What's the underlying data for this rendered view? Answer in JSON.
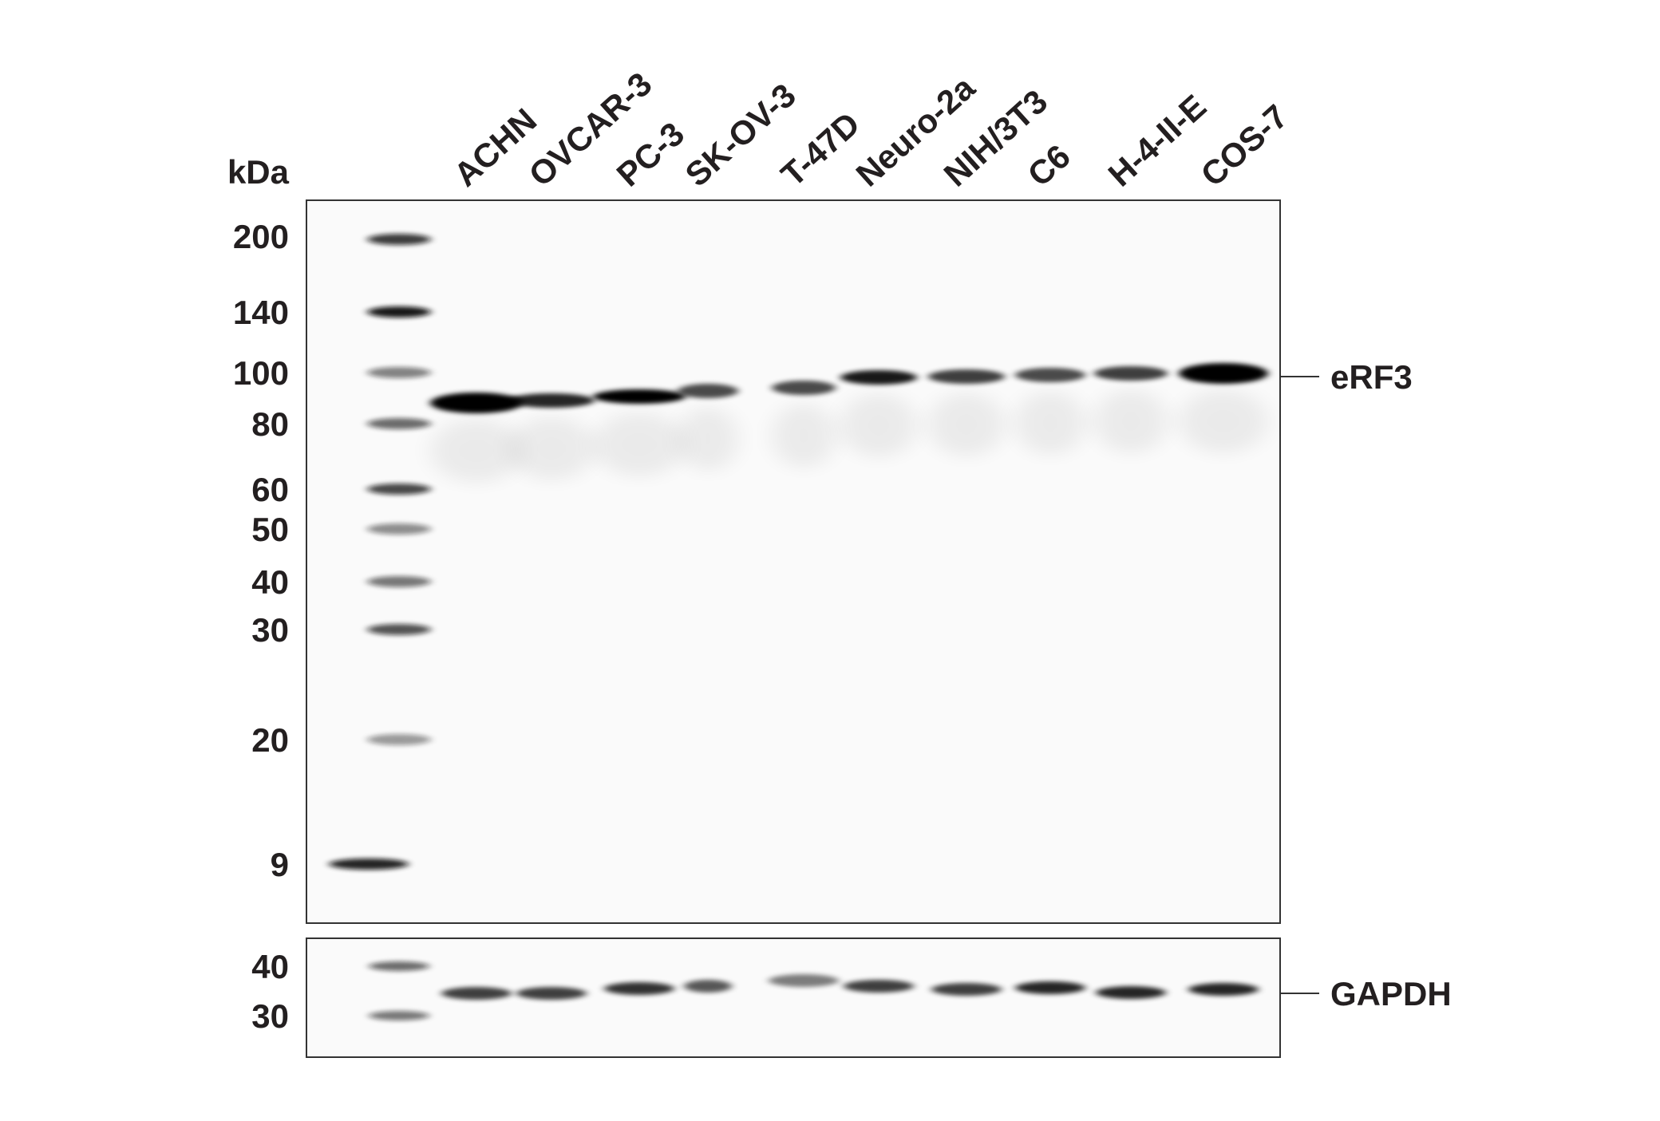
{
  "kda_label": "kDa",
  "lanes": [
    "ACHN",
    "OVCAR-3",
    "PC-3",
    "SK-OV-3",
    "T-47D",
    "Neuro-2a",
    "NIH/3T3",
    "C6",
    "H-4-II-E",
    "COS-7"
  ],
  "markers_main": [
    "200",
    "140",
    "100",
    "80",
    "60",
    "50",
    "40",
    "30",
    "20",
    "9"
  ],
  "markers_loading": [
    "40",
    "30"
  ],
  "targets": [
    "eRF3",
    "GAPDH"
  ]
}
